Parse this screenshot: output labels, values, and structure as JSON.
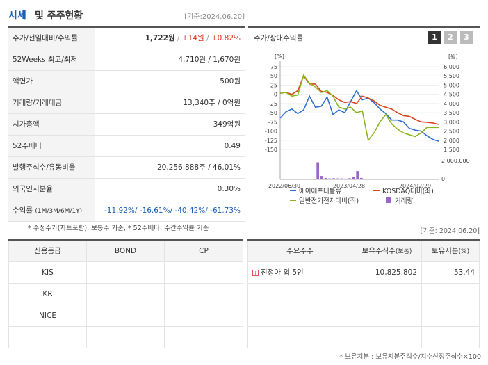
{
  "header": {
    "title_blue": "시세",
    "title_rest": "및 주주현황",
    "date": "[기준:2024.06.20]"
  },
  "info_rows": [
    {
      "label": "주가/전일대비/수익률"
    },
    {
      "label": "52Weeks 최고/최저",
      "value": "4,710원 / 1,670원"
    },
    {
      "label": "액면가",
      "value": "500원"
    },
    {
      "label": "거래량/거래대금",
      "value": "13,340주 / 0억원"
    },
    {
      "label": "시가총액",
      "value": "349억원"
    },
    {
      "label": "52주베타",
      "value": "0.49"
    },
    {
      "label": "발행주식수/유동비율",
      "value": "20,256,888주 / 46.01%"
    },
    {
      "label": "외국인지분율",
      "value": "0.30%"
    },
    {
      "label": "수익률",
      "label_sub": "(1M/3M/6M/1Y)"
    }
  ],
  "price": {
    "value": "1,722원",
    "sep1": " / ",
    "change": "+14원",
    "sep2": " / ",
    "rate": "+0.82%"
  },
  "returns": {
    "r1": "-11.92%",
    "r2": "-16.61%",
    "r3": "-40.42%",
    "r4": "-61.73%",
    "sep": "/ "
  },
  "note": "* 수정주가(차트포함), 보통주 기준, * 52주베타: 주간수익률 기준",
  "note_date": "[기준: 2024.06.20]",
  "chart_panel": {
    "title": "주가/상대수익률",
    "tabs": [
      "1",
      "2",
      "3"
    ]
  },
  "chart_data": {
    "type": "line",
    "left_axis": {
      "unit": "[%]",
      "ticks": [
        75,
        50,
        25,
        0,
        -25,
        -50,
        -75,
        -100,
        -125,
        -150
      ],
      "range": [
        -150,
        75
      ]
    },
    "right_axis": {
      "unit": "[원]",
      "ticks": [
        "6,000",
        "5,500",
        "5,000",
        "4,500",
        "4,000",
        "3,500",
        "3,000",
        "2,500",
        "2,000",
        "1,500"
      ],
      "range": [
        1500,
        6000
      ]
    },
    "volume_axis": {
      "ticks": [
        "2,000,000",
        "0"
      ],
      "max": 2000000
    },
    "x_ticks": [
      "2022/06/30",
      "2023/04/28",
      "2024/02/29"
    ],
    "series": [
      {
        "name": "에이에프더블류",
        "axis": "right",
        "color": "#2f6fcf",
        "values": [
          3200,
          3550,
          3700,
          3450,
          3650,
          4400,
          3800,
          3850,
          4350,
          3400,
          3650,
          3500,
          4100,
          4700,
          4200,
          4300,
          4050,
          3700,
          3450,
          3100,
          3100,
          3000,
          2650,
          2550,
          2500,
          2250,
          2050,
          1950
        ]
      },
      {
        "name": "KOSDAQ대비(좌)",
        "axis": "left",
        "color": "#d9441c",
        "values": [
          3,
          5,
          0,
          10,
          50,
          28,
          28,
          8,
          5,
          -3,
          -15,
          -22,
          -20,
          -25,
          -5,
          -10,
          -18,
          -30,
          -35,
          -40,
          -50,
          -58,
          -60,
          -68,
          -75,
          -76,
          -78,
          -82
        ]
      },
      {
        "name": "일반전기전자대비(좌)",
        "axis": "left",
        "color": "#8ab51c",
        "values": [
          3,
          5,
          -5,
          -2,
          52,
          30,
          20,
          5,
          10,
          -5,
          -35,
          -40,
          -35,
          -50,
          -45,
          -125,
          -105,
          -75,
          -55,
          -80,
          -95,
          -105,
          -110,
          -115,
          -105,
          -90,
          -90,
          -90
        ]
      },
      {
        "name": "거래량",
        "axis": "volume",
        "color": "#9966cc",
        "values": [
          0,
          0,
          0,
          0,
          0,
          0,
          0,
          0,
          0,
          1750000,
          350000,
          150000,
          100000,
          120000,
          100000,
          100000,
          80000,
          120000,
          250000,
          850000,
          150000,
          50000,
          30000,
          20000,
          20000,
          20000,
          0,
          0,
          0,
          0,
          60000,
          0,
          0,
          0,
          0,
          0,
          0,
          0,
          0,
          0
        ]
      }
    ]
  },
  "credit": {
    "headers": [
      "신용등급",
      "BOND",
      "CP"
    ],
    "rows": [
      [
        "KIS",
        "",
        ""
      ],
      [
        "KR",
        "",
        ""
      ],
      [
        "NICE",
        "",
        ""
      ],
      [
        "",
        "",
        ""
      ]
    ]
  },
  "holders": {
    "headers": [
      "주요주주",
      "보유주식수",
      "(보통)",
      "보유지분",
      "(%)"
    ],
    "rows": [
      {
        "name": "진정아 외 5인",
        "shares": "10,825,802",
        "pct": "53.44"
      }
    ]
  },
  "footnote": "* 보유지분 : 보유지분주식수/지수산정주식수×100"
}
